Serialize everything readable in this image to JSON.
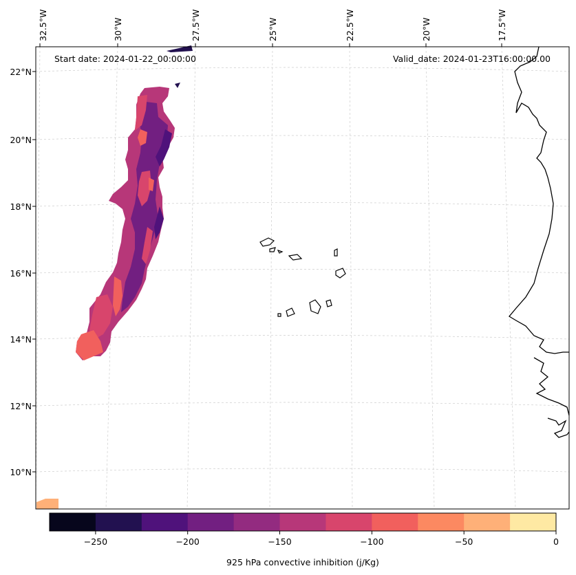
{
  "header": {
    "start_date": "Start date: 2024-01-22_00:00:00",
    "valid_date": "Valid_date: 2024-01-23T16:00:00.00"
  },
  "axes": {
    "lon_labels": [
      "32.5°W",
      "30°W",
      "27.5°W",
      "25°W",
      "22.5°W",
      "20°W",
      "17.5°W"
    ],
    "lat_labels": [
      "22°N",
      "20°N",
      "18°N",
      "16°N",
      "14°N",
      "12°N",
      "10°N"
    ]
  },
  "colorbar": {
    "label": "925 hPa convective inhibition (j/Kg)",
    "ticks": [
      "−250",
      "−200",
      "−150",
      "−100",
      "−50",
      "0"
    ],
    "levels": [
      -275,
      -250,
      -225,
      -200,
      -175,
      -150,
      -125,
      -100,
      -75,
      -50,
      -25,
      0
    ],
    "colors": [
      "#07061c",
      "#221150",
      "#4f127b",
      "#721f81",
      "#932b80",
      "#b73779",
      "#d8456c",
      "#f1605d",
      "#fc8961",
      "#feb078",
      "#fee9a3"
    ]
  },
  "field": {
    "variable": "925 hPa convective inhibition",
    "units": "j/Kg"
  }
}
